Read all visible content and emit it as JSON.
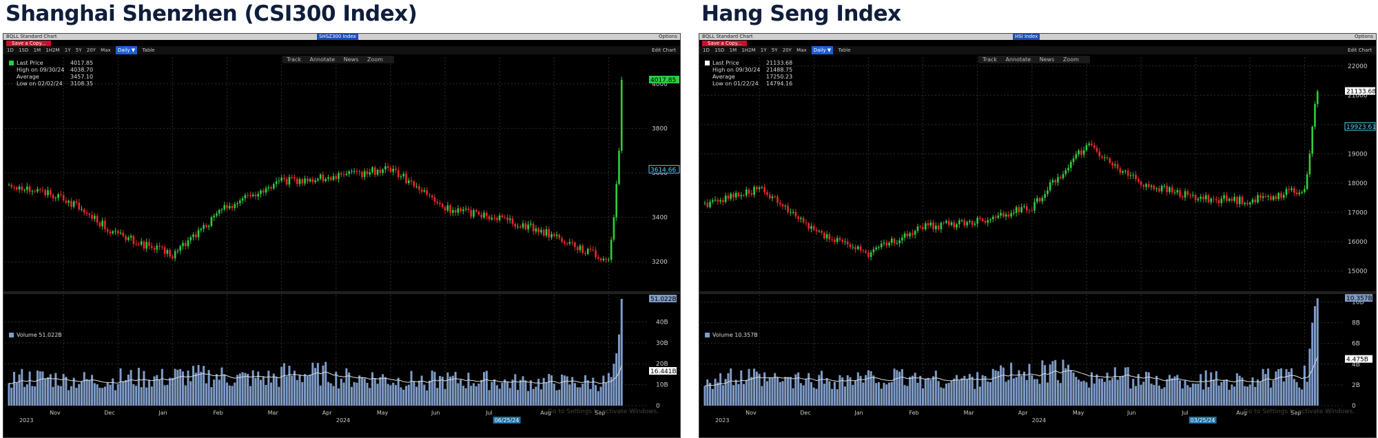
{
  "colors": {
    "up": "#2ecc40",
    "down": "#e8282b",
    "volume": "#7f9cc6",
    "average_line": "#dddddd",
    "grid": "#2e2e2e",
    "heading": "#0f1e3c"
  },
  "panels": [
    {
      "heading": "Shanghai Shenzhen (CSI300 Index)",
      "window_title": "BQLL Standard Chart",
      "security": "SHSZ300 Index",
      "options": "Options",
      "save_label": "Save a Copy...",
      "ranges": [
        "1D",
        "1SD",
        "1M",
        "1H2M",
        "1Y",
        "5Y",
        "20Y",
        "Max"
      ],
      "active_range": "Daily ▼",
      "table_label": "Table",
      "edit_label": "Edit Chart",
      "tools": [
        "Track",
        "Annotate",
        "News",
        "Zoom"
      ],
      "legend": [
        {
          "label": "Last Price",
          "value": "4017.85"
        },
        {
          "label": "High on 09/30/24",
          "value": "4038.70"
        },
        {
          "label": "Average",
          "value": "3457.10"
        },
        {
          "label": "Low on 02/02/24",
          "value": "3108.35"
        }
      ],
      "price_tags": [
        "4017.85",
        "3614.66"
      ],
      "volume_legend": "Volume 51.022B",
      "volume_tags": [
        "51.022B",
        "16.441B"
      ],
      "x_months": [
        "Nov",
        "Dec",
        "Jan",
        "Feb",
        "Mar",
        "Apr",
        "May",
        "Jun",
        "Jul",
        "Aug",
        "Sep"
      ],
      "years": [
        "2023",
        "2024"
      ],
      "date_tag": "06/25/24",
      "watermark": "Go to Settings to activate Windows."
    },
    {
      "heading": "Hang Seng Index",
      "window_title": "BQLL Standard Chart",
      "security": "HSI Index",
      "options": "Options",
      "save_label": "Save a Copy...",
      "ranges": [
        "1D",
        "1SD",
        "1M",
        "1H2M",
        "1Y",
        "5Y",
        "20Y",
        "Max"
      ],
      "active_range": "Daily ▼",
      "table_label": "Table",
      "edit_label": "Edit Chart",
      "tools": [
        "Track",
        "Annotate",
        "News",
        "Zoom"
      ],
      "legend": [
        {
          "label": "Last Price",
          "value": "21133.68"
        },
        {
          "label": "High on 09/30/24",
          "value": "21488.75"
        },
        {
          "label": "Average",
          "value": "17250.23"
        },
        {
          "label": "Low on 01/22/24",
          "value": "14794.16"
        }
      ],
      "price_tags": [
        "21133.68",
        "19923.61"
      ],
      "volume_legend": "Volume 10.357B",
      "volume_tags": [
        "10.357B",
        "4.475B"
      ],
      "x_months": [
        "Nov",
        "Dec",
        "Jan",
        "Feb",
        "Mar",
        "Apr",
        "May",
        "Jun",
        "Jul",
        "Aug",
        "Sep"
      ],
      "years": [
        "2023",
        "2024"
      ],
      "date_tag": "03/25/24",
      "watermark": "Go to Settings to activate Windows."
    }
  ],
  "chart_data": [
    {
      "type": "candlestick",
      "title": "Shanghai Shenzhen (CSI300 Index)",
      "y_ticks": [
        3200,
        3400,
        3600,
        3800,
        4000
      ],
      "ylim": [
        3080,
        4120
      ],
      "volume_ticks_label": [
        "0",
        "10B",
        "20B",
        "30B",
        "40B"
      ],
      "volume_ylim": [
        0,
        52
      ],
      "x_months": [
        "Nov",
        "Dec",
        "Jan",
        "Feb",
        "Mar",
        "Apr",
        "May",
        "Jun",
        "Jul",
        "Aug",
        "Sep"
      ],
      "monthly_path": [
        {
          "month": "Oct 2023",
          "close": 3550
        },
        {
          "month": "Nov 2023",
          "close": 3490
        },
        {
          "month": "Dec 2023",
          "close": 3320
        },
        {
          "month": "Jan 2024",
          "close": 3230
        },
        {
          "month": "Feb 2024",
          "close": 3450
        },
        {
          "month": "Mar 2024",
          "close": 3560
        },
        {
          "month": "Apr 2024",
          "close": 3580
        },
        {
          "month": "May 2024",
          "close": 3620
        },
        {
          "month": "Jun 2024",
          "close": 3440
        },
        {
          "month": "Jul 2024",
          "close": 3400
        },
        {
          "month": "Aug 2024",
          "close": 3320
        },
        {
          "month": "Sep 2024",
          "close": 3200
        }
      ],
      "final_rally": [
        3210,
        3300,
        3400,
        3550,
        3700,
        4017.85
      ],
      "volume_monthly_b": [
        13,
        12,
        13,
        14,
        13,
        15,
        13,
        12,
        12,
        11,
        11,
        13
      ],
      "volume_final_b": [
        20,
        25,
        34,
        51.022
      ]
    },
    {
      "type": "candlestick",
      "title": "Hang Seng Index",
      "y_ticks": [
        15000,
        16000,
        17000,
        18000,
        19000,
        20000,
        21000,
        22000
      ],
      "ylim": [
        14400,
        22300
      ],
      "volume_ticks_label": [
        "0",
        "2B",
        "4B",
        "6B",
        "8B",
        "10B"
      ],
      "volume_ylim": [
        0,
        10.5
      ],
      "x_months": [
        "Nov",
        "Dec",
        "Jan",
        "Feb",
        "Mar",
        "Apr",
        "May",
        "Jun",
        "Jul",
        "Aug",
        "Sep"
      ],
      "monthly_path": [
        {
          "month": "Oct 2023",
          "close": 17300
        },
        {
          "month": "Nov 2023",
          "close": 17800
        },
        {
          "month": "Dec 2023",
          "close": 16400
        },
        {
          "month": "Jan 2024",
          "close": 15600
        },
        {
          "month": "Feb 2024",
          "close": 16500
        },
        {
          "month": "Mar 2024",
          "close": 16700
        },
        {
          "month": "Apr 2024",
          "close": 17200
        },
        {
          "month": "May 2024",
          "close": 19300
        },
        {
          "month": "Jun 2024",
          "close": 18000
        },
        {
          "month": "Jul 2024",
          "close": 17500
        },
        {
          "month": "Aug 2024",
          "close": 17400
        },
        {
          "month": "Sep 2024",
          "close": 17800
        }
      ],
      "final_rally": [
        17800,
        18300,
        19000,
        19923.61,
        20700,
        21133.68
      ],
      "volume_monthly_b": [
        2.6,
        2.4,
        2.5,
        2.6,
        2.5,
        3.0,
        3.3,
        2.7,
        2.4,
        2.5,
        2.6,
        3.0
      ],
      "volume_final_b": [
        5.5,
        8.0,
        9.6,
        10.357
      ]
    }
  ]
}
